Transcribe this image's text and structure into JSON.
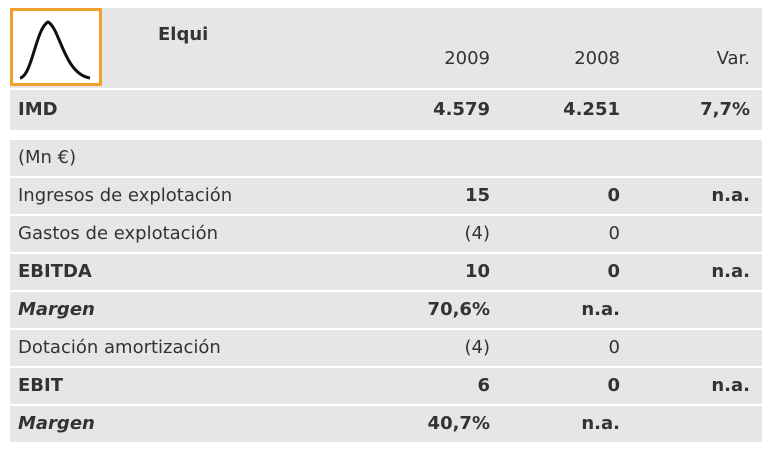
{
  "header": {
    "title": "Elqui",
    "columns": [
      "2009",
      "2008",
      "Var."
    ]
  },
  "rows": [
    {
      "label": "IMD",
      "values": [
        "4.579",
        "4.251",
        "7,7%"
      ]
    },
    {
      "label": "(Mn €)"
    },
    {
      "label": "Ingresos de explotación",
      "values": [
        "15",
        "0",
        "n.a."
      ]
    },
    {
      "label": "Gastos de explotación",
      "values": [
        "(4)",
        "0"
      ]
    },
    {
      "label": "EBITDA",
      "values": [
        "10",
        "0",
        "n.a."
      ]
    },
    {
      "label": "Margen",
      "values": [
        "70,6%",
        "n.a."
      ]
    },
    {
      "label": "Dotación amortización",
      "values": [
        "(4)",
        "0"
      ]
    },
    {
      "label": "EBIT",
      "values": [
        "6",
        "0",
        "n.a."
      ]
    },
    {
      "label": "Margen",
      "values": [
        "40,7%",
        "n.a."
      ]
    }
  ]
}
